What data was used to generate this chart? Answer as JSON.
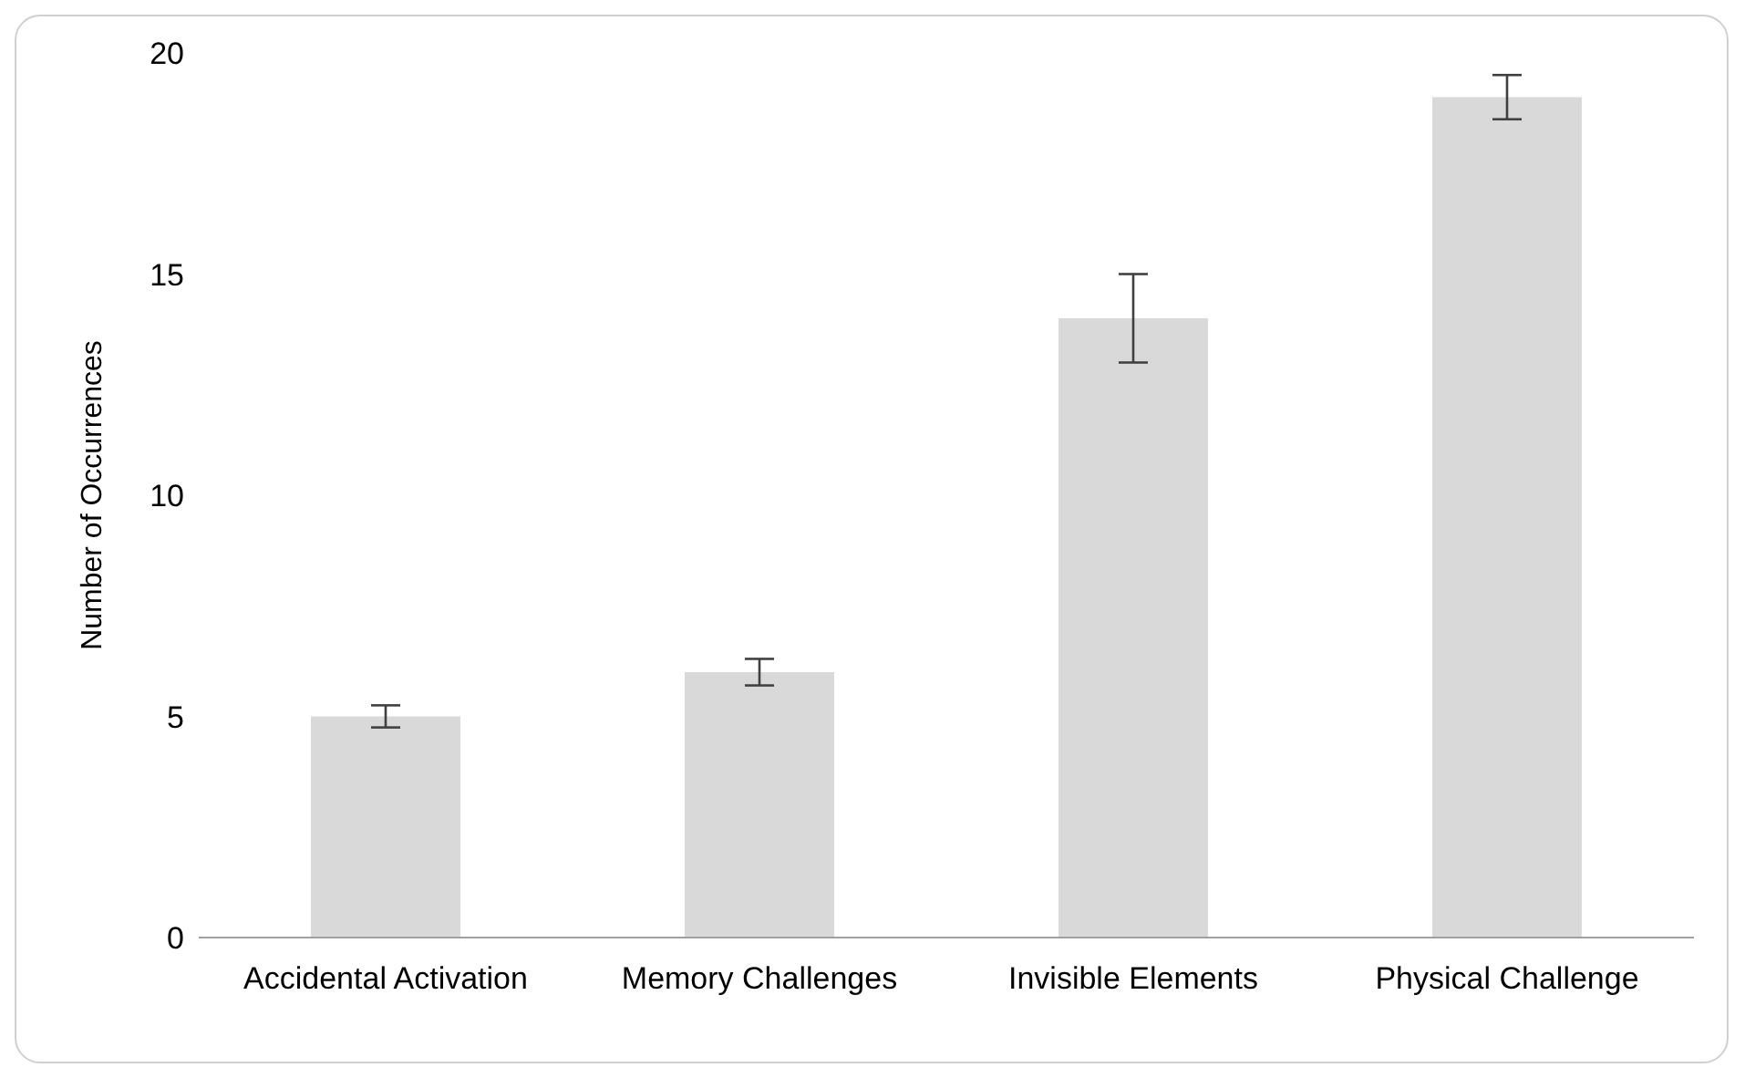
{
  "chart_data": {
    "type": "bar",
    "ylabel": "Number of Occurrences",
    "categories": [
      "Accidental Activation",
      "Memory Challenges",
      "Invisible Elements",
      "Physical Challenge"
    ],
    "values": [
      5,
      6,
      14,
      19
    ],
    "errors": [
      0.25,
      0.3,
      1,
      0.5
    ],
    "color": "#d9d9d9",
    "ylim": [
      0,
      20
    ],
    "yticks": [
      0,
      5,
      10,
      15,
      20
    ],
    "grid": false,
    "legend": false
  }
}
